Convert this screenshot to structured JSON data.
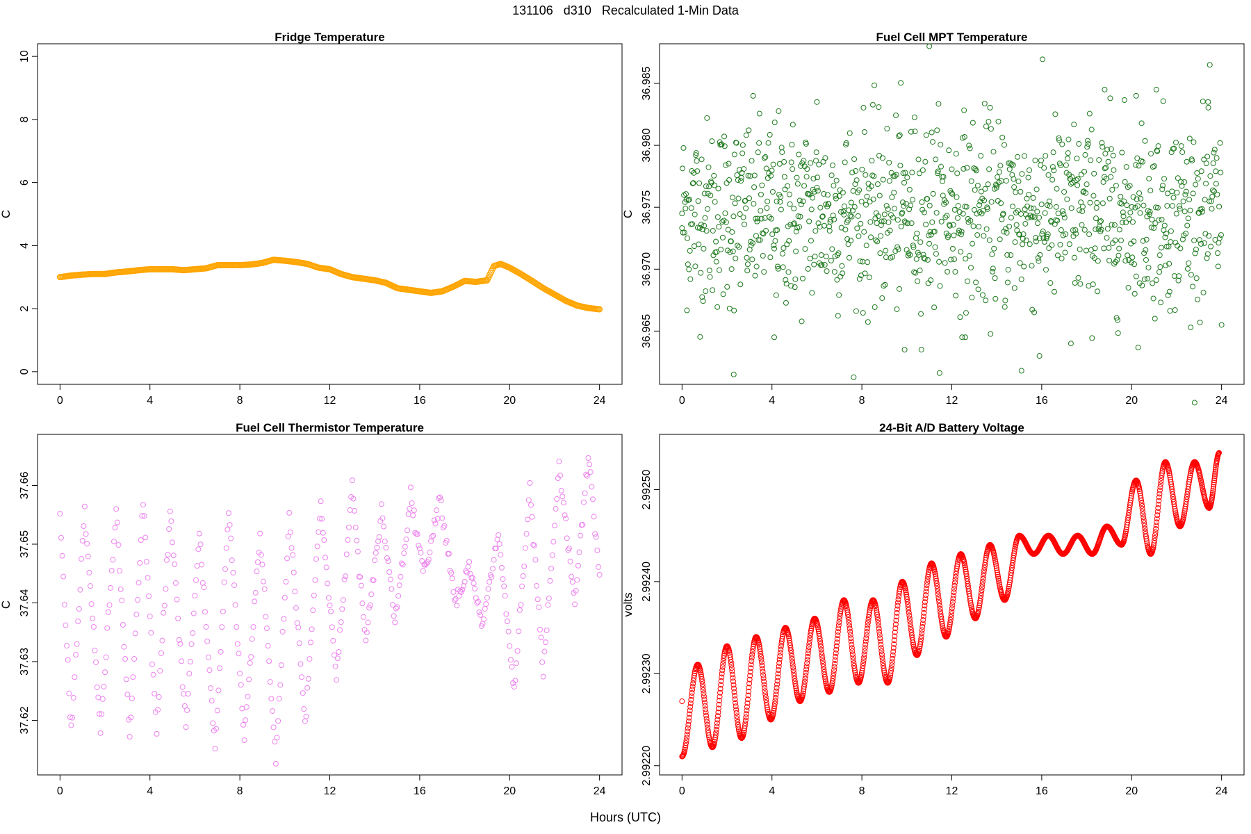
{
  "figure": {
    "title": "131106   d310   Recalculated 1-Min Data",
    "xlabel": "Hours (UTC)"
  },
  "chart_data": [
    {
      "type": "scatter",
      "title": "Fridge Temperature",
      "xlabel": "",
      "ylabel": "C",
      "xlim": [
        -1,
        25
      ],
      "ylim": [
        -0.4,
        10.4
      ],
      "xticks": [
        0,
        4,
        8,
        12,
        16,
        20,
        24
      ],
      "xtick_labels": [
        "0",
        "4",
        "8",
        "12",
        "16",
        "20",
        "24"
      ],
      "yticks": [
        0,
        2,
        4,
        6,
        8,
        10
      ],
      "ytick_labels": [
        "0",
        "2",
        "4",
        "6",
        "8",
        "10"
      ],
      "color": "#FFA500",
      "marker": "open-circle",
      "series": [
        {
          "name": "Fridge Temperature",
          "x": [
            0,
            0.5,
            1,
            1.5,
            2,
            2.5,
            3,
            3.5,
            4,
            4.5,
            5,
            5.5,
            6,
            6.5,
            7,
            7.5,
            8,
            8.5,
            9,
            9.5,
            10,
            10.5,
            11,
            11.5,
            12,
            12.5,
            13,
            13.5,
            14,
            14.5,
            15,
            15.5,
            16,
            16.5,
            17,
            17.5,
            18,
            18.5,
            19,
            19.3,
            19.6,
            20,
            20.5,
            21,
            21.5,
            22,
            22.5,
            23,
            23.5,
            24
          ],
          "y": [
            3.0,
            3.05,
            3.08,
            3.1,
            3.1,
            3.15,
            3.18,
            3.22,
            3.25,
            3.25,
            3.25,
            3.22,
            3.25,
            3.28,
            3.38,
            3.38,
            3.38,
            3.4,
            3.45,
            3.55,
            3.52,
            3.48,
            3.42,
            3.3,
            3.25,
            3.1,
            3.0,
            2.95,
            2.9,
            2.82,
            2.65,
            2.6,
            2.55,
            2.5,
            2.55,
            2.7,
            2.88,
            2.85,
            2.9,
            3.35,
            3.42,
            3.3,
            3.1,
            2.88,
            2.65,
            2.45,
            2.25,
            2.1,
            2.02,
            1.98
          ]
        }
      ]
    },
    {
      "type": "scatter",
      "title": "Fuel Cell MPT Temperature",
      "xlabel": "",
      "ylabel": "C",
      "xlim": [
        -1,
        25
      ],
      "ylim": [
        36.9607,
        36.9882
      ],
      "xticks": [
        0,
        4,
        8,
        12,
        16,
        20,
        24
      ],
      "xtick_labels": [
        "0",
        "4",
        "8",
        "12",
        "16",
        "20",
        "24"
      ],
      "yticks": [
        36.965,
        36.97,
        36.975,
        36.98,
        36.985
      ],
      "ytick_labels": [
        "36.965",
        "36.970",
        "36.975",
        "36.980",
        "36.985"
      ],
      "color": "#1E7A1E",
      "marker": "open-circle",
      "series": [
        {
          "name": "Fuel Cell MPT Temperature",
          "x": [
            0,
            2.3,
            4.1,
            6,
            9.9,
            11,
            12.6,
            15.1,
            15.9,
            17.3,
            18.8,
            20.2,
            21.1,
            23.4,
            24
          ],
          "y": [
            36.9745,
            36.9615,
            36.9645,
            36.9835,
            36.9635,
            36.988,
            36.9645,
            36.9618,
            36.963,
            36.964,
            36.9845,
            36.984,
            36.9845,
            36.9835,
            36.9655
          ]
        }
      ]
    },
    {
      "type": "scatter",
      "title": "Fuel Cell Thermistor Temperature",
      "xlabel": "",
      "ylabel": "C",
      "xlim": [
        -1,
        25
      ],
      "ylim": [
        37.6107,
        37.6687
      ],
      "xticks": [
        0,
        4,
        8,
        12,
        16,
        20,
        24
      ],
      "xtick_labels": [
        "0",
        "4",
        "8",
        "12",
        "16",
        "20",
        "24"
      ],
      "yticks": [
        37.62,
        37.63,
        37.64,
        37.65,
        37.66
      ],
      "ytick_labels": [
        "37.62",
        "37.63",
        "37.64",
        "37.65",
        "37.66"
      ],
      "color": "#EE82EE",
      "marker": "open-circle",
      "series": [
        {
          "name": "Fuel Cell Thermistor Temperature",
          "x": [
            0,
            0.5,
            1.1,
            1.8,
            2.5,
            3.1,
            3.7,
            4.3,
            4.9,
            5.6,
            6.2,
            6.9,
            7.5,
            8.2,
            8.9,
            9.6,
            10.2,
            10.9,
            11.6,
            12.3,
            13,
            13.6,
            14.3,
            14.9,
            15.6,
            16.2,
            16.9,
            17.6,
            18.2,
            18.8,
            19.5,
            20.2,
            20.9,
            21.5,
            22.2,
            22.9,
            23.5,
            24
          ],
          "y": [
            37.655,
            37.618,
            37.656,
            37.618,
            37.656,
            37.617,
            37.657,
            37.618,
            37.656,
            37.619,
            37.652,
            37.615,
            37.656,
            37.617,
            37.652,
            37.613,
            37.655,
            37.62,
            37.657,
            37.627,
            37.66,
            37.633,
            37.656,
            37.637,
            37.658,
            37.645,
            37.658,
            37.64,
            37.646,
            37.636,
            37.652,
            37.625,
            37.659,
            37.628,
            37.663,
            37.64,
            37.665,
            37.645
          ]
        }
      ]
    },
    {
      "type": "scatter",
      "title": "24-Bit A/D Battery Voltage",
      "xlabel": "",
      "ylabel": "volts",
      "xlim": [
        -1,
        25
      ],
      "ylim": [
        2.99219,
        2.99256
      ],
      "xticks": [
        0,
        4,
        8,
        12,
        16,
        20,
        24
      ],
      "xtick_labels": [
        "0",
        "4",
        "8",
        "12",
        "16",
        "20",
        "24"
      ],
      "yticks": [
        2.9922,
        2.9923,
        2.9924,
        2.9925
      ],
      "ytick_labels": [
        "2.99220",
        "2.99230",
        "2.99240",
        "2.99250"
      ],
      "color": "#FF0000",
      "marker": "open-circle",
      "series": [
        {
          "name": "24-Bit A/D Battery Voltage",
          "x": [
            0,
            0.7,
            1.35,
            2,
            2.65,
            3.3,
            3.95,
            4.6,
            5.25,
            5.9,
            6.55,
            7.2,
            7.85,
            8.5,
            9.15,
            9.8,
            10.45,
            11.1,
            11.75,
            12.4,
            13.05,
            13.7,
            14.35,
            15,
            15.65,
            16.3,
            16.95,
            17.6,
            18.25,
            18.9,
            19.55,
            20.2,
            20.85,
            21.5,
            22.15,
            22.8,
            23.45,
            23.9
          ],
          "y": [
            2.99221,
            2.99231,
            2.99222,
            2.99233,
            2.99223,
            2.99234,
            2.99225,
            2.99235,
            2.99227,
            2.99236,
            2.99228,
            2.99238,
            2.99229,
            2.99238,
            2.99229,
            2.9924,
            2.99232,
            2.99242,
            2.99234,
            2.99243,
            2.99236,
            2.99244,
            2.99238,
            2.99245,
            2.99243,
            2.99245,
            2.99243,
            2.99245,
            2.99243,
            2.99246,
            2.99244,
            2.99251,
            2.99243,
            2.99253,
            2.99246,
            2.99253,
            2.99248,
            2.99254
          ]
        }
      ]
    }
  ]
}
